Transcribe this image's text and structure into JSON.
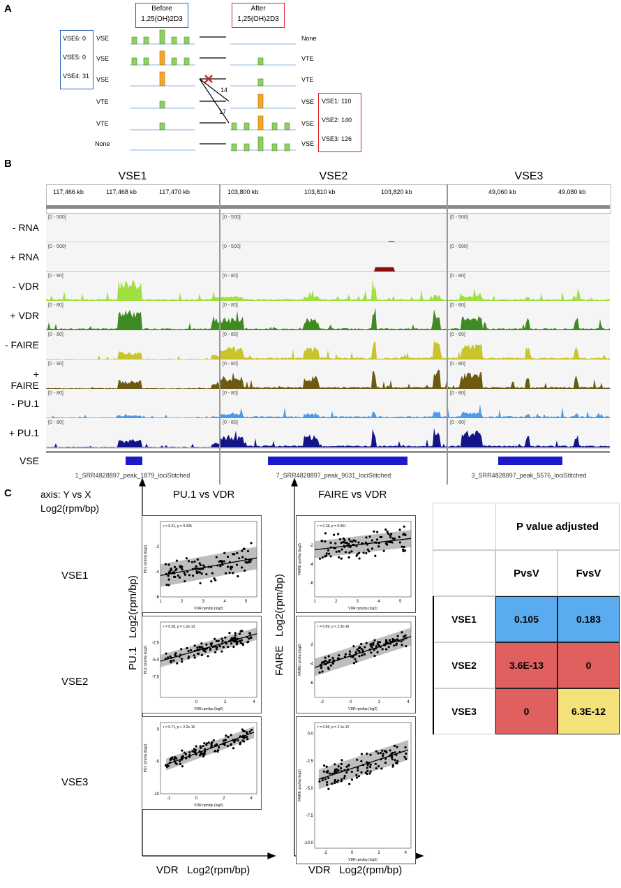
{
  "panelA": {
    "label": "A",
    "before_title": "Before\n1,25(OH)2D3",
    "after_title": "After\n1,25(OH)2D3",
    "left_counts": [
      "VSE6: 0",
      "VSE5: 0",
      "VSE4: 31"
    ],
    "rows": [
      {
        "before": "VSE",
        "after": "None"
      },
      {
        "before": "VSE",
        "after": "VTE"
      },
      {
        "before": "VSE",
        "after": "VTE"
      },
      {
        "before": "VTE",
        "after": "VSE"
      },
      {
        "before": "VTE",
        "after": "VSE"
      },
      {
        "before": "None",
        "after": "VSE"
      }
    ],
    "right_counts": [
      "VSE1: 110",
      "VSE2: 140",
      "VSE3: 126"
    ],
    "arrow_labels": [
      "14",
      "17"
    ]
  },
  "panelB": {
    "label": "B",
    "loci": [
      {
        "title": "VSE1",
        "ticks": [
          "117,466 kb",
          "117,468 kb",
          "117,470 kb"
        ],
        "vse_name": "1_SRR4828897_peak_1879_lociStitched"
      },
      {
        "title": "VSE2",
        "ticks": [
          "103,800 kb",
          "103,810 kb",
          "103,820 kb"
        ],
        "vse_name": "7_SRR4828897_peak_9031_lociStitched"
      },
      {
        "title": "VSE3",
        "ticks": [
          "49,060 kb",
          "49,080 kb"
        ],
        "vse_name": "3_SRR4828897_peak_5576_lociStitched"
      }
    ],
    "tracks": [
      {
        "label": "- RNA",
        "range": "[0 - 500]",
        "color": "#e0403a"
      },
      {
        "label": "+ RNA",
        "range": "[0 - 500]",
        "color": "#8a1010"
      },
      {
        "label": "- VDR",
        "range": "[0 - 80]",
        "color": "#9fe040"
      },
      {
        "label": "+ VDR",
        "range": "[0 - 80]",
        "color": "#3f8a22"
      },
      {
        "label": "- FAIRE",
        "range": "[0 - 80]",
        "color": "#c9c42a"
      },
      {
        "label": "+ FAIRE",
        "range": "[0 - 80]",
        "color": "#6b5a10"
      },
      {
        "label": "- PU.1",
        "range": "[0 - 80]",
        "color": "#4a9be8"
      },
      {
        "label": "+ PU.1",
        "range": "[0 - 80]",
        "color": "#14148a"
      }
    ],
    "vse_track_label": "VSE"
  },
  "panelC": {
    "label": "C",
    "axis_note_1": "axis: Y vs X",
    "axis_note_2": "Log2(rpm/bp)",
    "col_titles": [
      "PU.1 vs VDR",
      "FAIRE vs VDR"
    ],
    "row_labels": [
      "VSE1",
      "VSE2",
      "VSE3"
    ],
    "ylabel_left": "PU.1   Log2(rpm/bp)",
    "ylabel_right": "FAIRE   Log2(rpm/bp)",
    "xlabel_left": "VDR   Log2(rpm/bp)",
    "xlabel_right": "VDR   Log2(rpm/bp)",
    "table": {
      "header": "P value adjusted",
      "cols": [
        "PvsV",
        "FvsV"
      ],
      "rows": [
        {
          "name": "VSE1",
          "p": "0.105",
          "f": "0.183"
        },
        {
          "name": "VSE2",
          "p": "3.6E-13",
          "f": "0"
        },
        {
          "name": "VSE3",
          "p": "0",
          "f": "6.3E-12"
        }
      ],
      "colors": {
        "blue": "#5aacee",
        "red": "#e06060",
        "yellow": "#f5e27a"
      }
    }
  },
  "chart_data": [
    {
      "type": "scatter",
      "title": "PU.1 vs VDR VSE1",
      "annotation": "r = 0.21, p = 0.035",
      "xlabel": "VDR rpm/bp (log2)",
      "ylabel": "PU1 rpm/bp (log2)",
      "xlim": [
        1,
        5.5
      ],
      "ylim": [
        -6,
        0
      ],
      "xticks": [
        "1",
        "2",
        "3",
        "4",
        "5"
      ],
      "yticks": [
        "-2",
        "-4",
        "-6"
      ],
      "fit": {
        "x": [
          1,
          5.5
        ],
        "y": [
          -4.3,
          -2.9
        ]
      }
    },
    {
      "type": "scatter",
      "title": "PU.1 vs VDR VSE2",
      "annotation": "r = 0.58, p = 1.2e-13",
      "xlabel": "VDR rpm/bp (log2)",
      "ylabel": "PU1 rpm/bp (log2)",
      "xlim": [
        -2.5,
        4.2
      ],
      "ylim": [
        -10.5,
        0.5
      ],
      "xticks": [
        "0",
        "2",
        "4"
      ],
      "yticks": [
        "-2.5",
        "-5.0",
        "-7.5"
      ],
      "fit": {
        "x": [
          -2.5,
          4.2
        ],
        "y": [
          -5.2,
          -1.2
        ]
      }
    },
    {
      "type": "scatter",
      "title": "PU.1 vs VDR VSE3",
      "annotation": "r = 0.71, p < 2.2e-16",
      "xlabel": "VDR rpm/bp (log2)",
      "ylabel": "PU1 rpm/bp (log2)",
      "xlim": [
        -2.6,
        4.4
      ],
      "ylim": [
        -10,
        1
      ],
      "xticks": [
        "-2",
        "0",
        "2",
        "4"
      ],
      "yticks": [
        "0",
        "-5",
        "-10"
      ],
      "fit": {
        "x": [
          -2.2,
          4.2
        ],
        "y": [
          -5.5,
          -0.5
        ]
      }
    },
    {
      "type": "scatter",
      "title": "FAIRE vs VDR VSE1",
      "annotation": "r = 0.18, p = 0.061",
      "xlabel": "VDR rpm/bp (log2)",
      "ylabel": "FAIRE rpm/bp (log2)",
      "xlim": [
        1,
        5.5
      ],
      "ylim": [
        -7.5,
        0.5
      ],
      "xticks": [
        "1",
        "2",
        "3",
        "4",
        "5"
      ],
      "yticks": [
        "-2",
        "-4",
        "-6"
      ],
      "fit": {
        "x": [
          1,
          5.5
        ],
        "y": [
          -2.5,
          -1.3
        ]
      }
    },
    {
      "type": "scatter",
      "title": "FAIRE vs VDR VSE2",
      "annotation": "r = 0.69, p < 2.2e-16",
      "xlabel": "VDR rpm/bp (log2)",
      "ylabel": "FAIRE rpm/bp (log2)",
      "xlim": [
        -2.5,
        4.2
      ],
      "ylim": [
        -7.5,
        0.3
      ],
      "xticks": [
        "-2",
        "0",
        "2",
        "4"
      ],
      "yticks": [
        "-2",
        "-4",
        "-6"
      ],
      "fit": {
        "x": [
          -2.5,
          4.2
        ],
        "y": [
          -4.4,
          -1.2
        ]
      }
    },
    {
      "type": "scatter",
      "title": "FAIRE vs VDR VSE3",
      "annotation": "r = 0.58, p = 2.1e-12",
      "xlabel": "VDR rpm/bp (log2)",
      "ylabel": "FAIRE rpm/bp (log2)",
      "xlim": [
        -2.8,
        4.4
      ],
      "ylim": [
        -10.5,
        1
      ],
      "xticks": [
        "-2",
        "0",
        "2",
        "4"
      ],
      "yticks": [
        "0.0",
        "-2.5",
        "-5.0",
        "-7.5",
        "-10.0"
      ],
      "fit": {
        "x": [
          -2.5,
          4.2
        ],
        "y": [
          -4.2,
          -1.5
        ]
      }
    }
  ]
}
